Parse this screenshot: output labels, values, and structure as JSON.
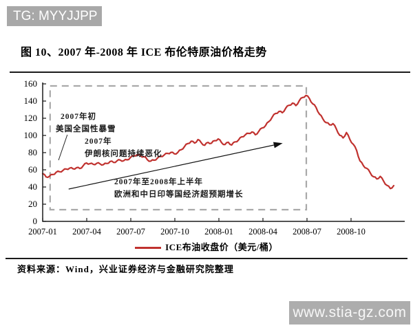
{
  "badge": {
    "text": "TG: MYYJJPP"
  },
  "figure": {
    "title": "图 10、2007 年-2008 年 ICE 布伦特原油价格走势",
    "source": "资料来源：Wind，兴业证券经济与金融研究院整理"
  },
  "watermark": {
    "text": "www.stia-gz.com"
  },
  "chart_data": {
    "type": "line",
    "title": "2007年-2008年 ICE 布伦特原油价格走势",
    "unit": "美元/桶",
    "x_tick_labels": [
      "2007-01",
      "2007-04",
      "2007-07",
      "2007-10",
      "2008-01",
      "2008-04",
      "2008-07",
      "2008-10"
    ],
    "y_tick_labels": [
      "160",
      "140",
      "120",
      "100",
      "80",
      "60",
      "40",
      "20",
      "0"
    ],
    "ylim": [
      0,
      160
    ],
    "x_range": [
      "2007-01",
      "2008-12"
    ],
    "frequency": "weekly",
    "grid": false,
    "legend": {
      "label": "ICE布油收盘价（美元/桶）",
      "position": "bottom-center"
    },
    "series": [
      {
        "name": "ICE布油收盘价（美元/桶）",
        "color": "#c0312e",
        "values": [
          55.5,
          51.8,
          52.5,
          54.5,
          57.2,
          57.8,
          59.3,
          60.9,
          62.0,
          61.2,
          62.4,
          61.5,
          64.7,
          67.9,
          67.2,
          66.3,
          67.6,
          66.9,
          66.1,
          67.4,
          69.8,
          68.6,
          70.4,
          71.3,
          70.6,
          71.6,
          74.3,
          76.4,
          77.6,
          76.1,
          75.4,
          71.8,
          70.1,
          71.2,
          73.6,
          75.6,
          77.3,
          79.1,
          80.3,
          78.6,
          80.1,
          83.4,
          87.0,
          90.6,
          93.3,
          91.1,
          95.2,
          91.4,
          88.6,
          91.9,
          91.0,
          93.9,
          96.0,
          91.6,
          89.4,
          92.1,
          88.9,
          92.6,
          94.6,
          98.4,
          100.6,
          102.4,
          104.1,
          100.8,
          104.6,
          108.7,
          111.4,
          116.2,
          121.4,
          125.6,
          127.9,
          126.4,
          131.8,
          135.1,
          137.6,
          134.7,
          140.3,
          144.2,
          146.6,
          143.1,
          136.8,
          132.6,
          124.8,
          119.4,
          114.9,
          112.4,
          113.8,
          107.6,
          100.2,
          97.1,
          103.4,
          95.3,
          89.8,
          82.6,
          70.3,
          64.9,
          61.8,
          56.7,
          51.9,
          49.4,
          52.3,
          46.8,
          41.9,
          38.2,
          41.6
        ]
      }
    ],
    "annotations": [
      {
        "id": "blizzard",
        "lines": [
          "2007年初",
          "美国全国性暴雪"
        ]
      },
      {
        "id": "iran",
        "lines": [
          "2007年",
          "伊朗核问题持续恶化"
        ]
      },
      {
        "id": "growth",
        "lines": [
          "2007年至2008年上半年",
          "欧洲和中日印等国经济超预期增长"
        ]
      }
    ],
    "highlight_box": {
      "x_weeks": [
        2.2,
        78.1
      ],
      "y_values": [
        13.6,
        157.6
      ],
      "style": "gray-dashed"
    },
    "arrow": {
      "from": [
        7.7,
        37.6
      ],
      "to": [
        68.5,
        88.8
      ]
    },
    "callout": {
      "from": [
        4.7,
        71.2
      ],
      "to": [
        7.3,
        100.8
      ]
    }
  }
}
